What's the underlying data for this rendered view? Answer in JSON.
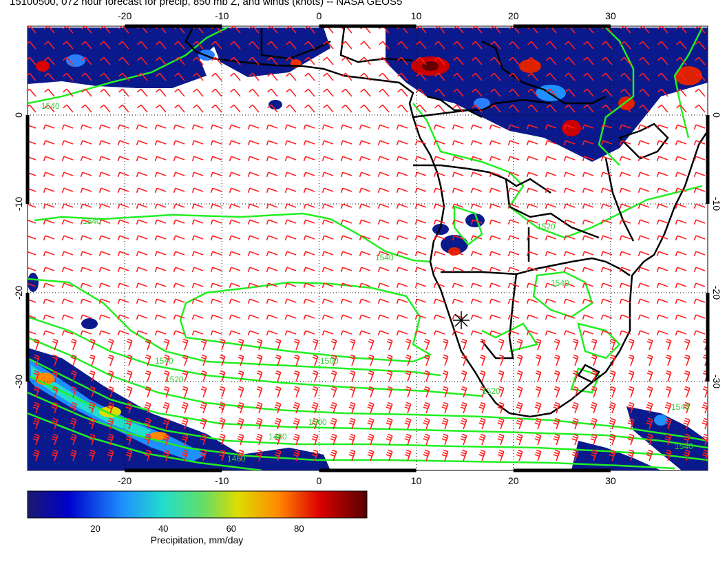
{
  "title": "15100500, 072 hour forecast for precip, 850 mb Z, and winds (knots) -- NASA GEOS5",
  "map": {
    "lon_range": [
      -30,
      40
    ],
    "lat_range": [
      -40,
      10
    ],
    "lon_ticks": [
      "-20",
      "-10",
      "0",
      "10",
      "20",
      "30"
    ],
    "lat_ticks": [
      "0",
      "-10",
      "-20",
      "-30"
    ],
    "contour_labels": [
      "1540",
      "1520",
      "1500",
      "1480",
      "1460",
      "1540",
      "1520",
      "1520",
      "1500",
      "1540",
      "1540",
      "1540",
      "1540",
      "1540"
    ],
    "colors": {
      "contour": "#22ee22",
      "barb": "#ff2020",
      "coast": "#000000"
    }
  },
  "colorbar": {
    "label": "Precipitation, mm/day",
    "ticks": [
      "20",
      "40",
      "60",
      "80"
    ],
    "range": [
      0,
      100
    ]
  }
}
